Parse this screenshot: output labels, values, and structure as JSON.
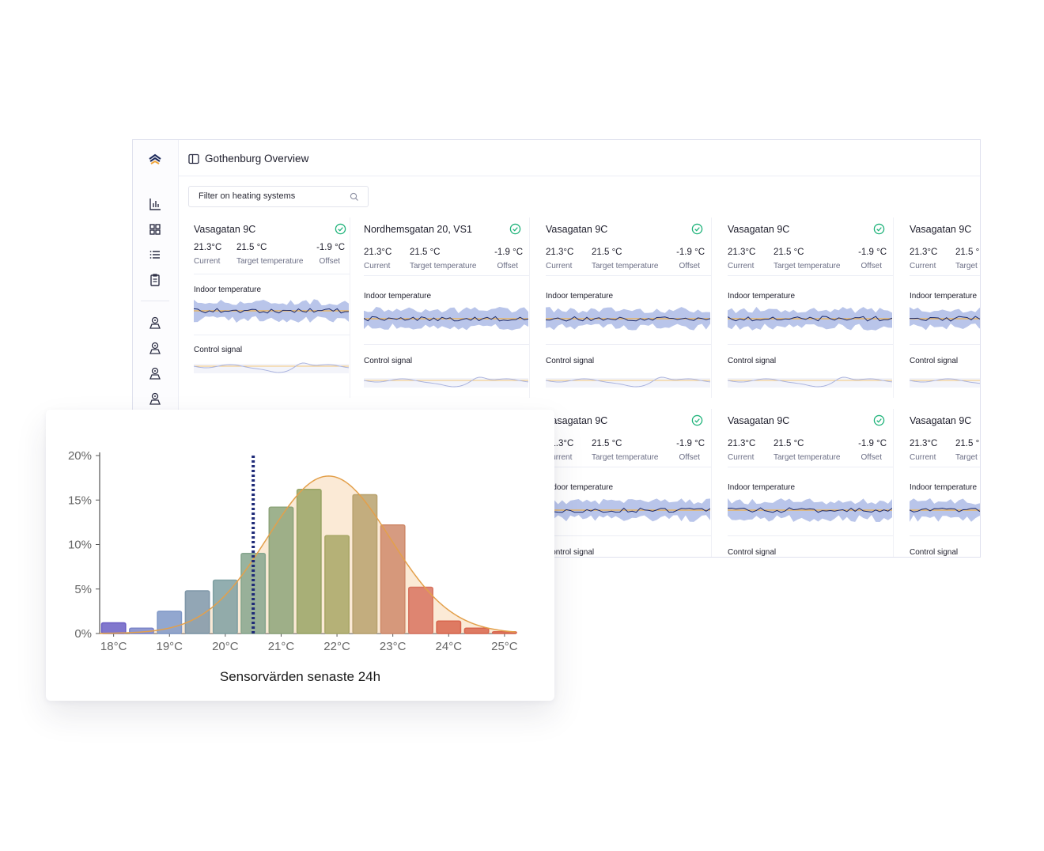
{
  "header": {
    "title": "Gothenburg Overview"
  },
  "filter": {
    "placeholder": "Filter on heating systems"
  },
  "sidebar": {
    "icons": [
      "logo-icon",
      "bar-chart-icon",
      "grid-icon",
      "list-icon",
      "clipboard-icon",
      "location-user-icon",
      "location-user-icon",
      "location-user-icon",
      "location-user-icon"
    ]
  },
  "labels": {
    "current": "Current",
    "target": "Target temperature",
    "offset": "Offset",
    "indoor": "Indoor temperature",
    "control": "Control signal"
  },
  "cards": [
    {
      "name": "Vasagatan 9C",
      "current": "21.3°C",
      "target": "21.5 °C",
      "offset": "-1.9 °C",
      "status": "ok"
    },
    {
      "name": "Nordhemsgatan 20, VS1",
      "current": "21.3°C",
      "target": "21.5 °C",
      "offset": "-1.9 °C",
      "status": "ok"
    },
    {
      "name": "Vasagatan 9C",
      "current": "21.3°C",
      "target": "21.5 °C",
      "offset": "-1.9 °C",
      "status": "ok"
    },
    {
      "name": "Vasagatan 9C",
      "current": "21.3°C",
      "target": "21.5 °C",
      "offset": "-1.9 °C",
      "status": "ok"
    },
    {
      "name": "Vasagatan 9C",
      "current": "21.3°C",
      "target": "21.5 °",
      "offset": "",
      "status": ""
    },
    {
      "name": "Vasagatan 9C",
      "current": "21.3°C",
      "target": "21.5 °C",
      "offset": "-1.9 °C",
      "status": "ok"
    },
    {
      "name": "Vasagatan 9C",
      "current": "21.3°C",
      "target": "21.5 °C",
      "offset": "-1.9 °C",
      "status": "ok"
    },
    {
      "name": "Vasagatan 9C",
      "current": "21.3°C",
      "target": "21.5 °",
      "offset": "",
      "status": ""
    }
  ],
  "colors": {
    "band": "#b9c5ea",
    "line": "#1c2a6b",
    "target": "#f0b04a",
    "ok": "#1fb37a"
  },
  "chart_data": {
    "type": "bar",
    "title": "Sensorvärden senaste 24h",
    "categories": [
      "18.0",
      "18.5",
      "19.0",
      "19.5",
      "20.0",
      "20.5",
      "21.0",
      "21.5",
      "22.0",
      "22.5",
      "23.0",
      "23.5",
      "24.0",
      "24.5",
      "25.0"
    ],
    "values": [
      1.2,
      0.6,
      2.5,
      4.8,
      6.0,
      9.0,
      14.2,
      16.2,
      11.0,
      15.6,
      12.2,
      5.2,
      1.4,
      0.6,
      0.2
    ],
    "x_ticks": [
      "18°C",
      "19°C",
      "20°C",
      "21°C",
      "22°C",
      "23°C",
      "24°C",
      "25°C"
    ],
    "y_ticks": [
      "0%",
      "5%",
      "10%",
      "15%",
      "20%"
    ],
    "ylim": [
      0,
      20
    ],
    "xlim": [
      17.75,
      25.2
    ],
    "marker_x": 20.5,
    "curve": {
      "mean": 21.85,
      "sd": 1.1,
      "peak": 17.7
    },
    "bar_colors": [
      "#6b5fc4",
      "#7c86c9",
      "#7f98c7",
      "#7f97a8",
      "#7fa0a2",
      "#86a68e",
      "#8da47a",
      "#99a566",
      "#a8a766",
      "#b8a26f",
      "#cf8a6b",
      "#d8735f",
      "#d8664e",
      "#d8664e",
      "#d8664e"
    ]
  }
}
